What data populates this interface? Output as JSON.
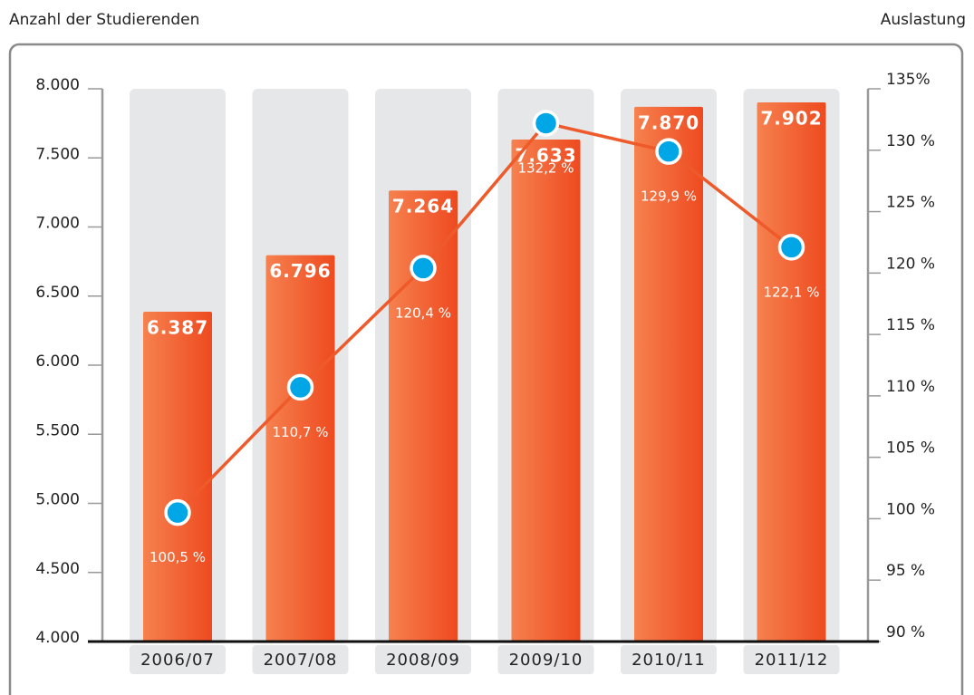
{
  "chart_data": {
    "type": "bar",
    "y_label": "Anzahl der Studierenden",
    "y2_label": "Auslastung",
    "categories": [
      "2006/07",
      "2007/08",
      "2008/09",
      "2009/10",
      "2010/11",
      "2011/12"
    ],
    "series": [
      {
        "type": "bar",
        "color": "#ee5024",
        "axis": "y",
        "values": [
          6387,
          6796,
          7264,
          7633,
          7870,
          7902
        ],
        "value_labels": [
          "6.387",
          "6.796",
          "7.264",
          "7.633",
          "7.870",
          "7.902"
        ]
      },
      {
        "type": "line",
        "color": "#ee5a2a",
        "marker_color": "#00a6e6",
        "axis": "y2",
        "values": [
          100.5,
          110.7,
          120.4,
          132.2,
          129.9,
          122.1
        ],
        "value_labels": [
          "100,5 %",
          "110,7 %",
          "120,4 %",
          "132,2 %",
          "129,9 %",
          "122,1 %"
        ]
      }
    ],
    "ylim": [
      4000,
      8000
    ],
    "yticks": [
      {
        "value": 4000,
        "label": "4.000"
      },
      {
        "value": 4500,
        "label": "4.500"
      },
      {
        "value": 5000,
        "label": "5.000"
      },
      {
        "value": 5500,
        "label": "5.500"
      },
      {
        "value": 6000,
        "label": "6.000"
      },
      {
        "value": 6500,
        "label": "6.500"
      },
      {
        "value": 7000,
        "label": "7.000"
      },
      {
        "value": 7500,
        "label": "7.500"
      },
      {
        "value": 8000,
        "label": "8.000"
      }
    ],
    "y2lim": [
      90,
      135
    ],
    "y2ticks": [
      {
        "value": 90,
        "label": "90 %"
      },
      {
        "value": 95,
        "label": "95 %"
      },
      {
        "value": 100,
        "label": "100 %"
      },
      {
        "value": 105,
        "label": "105 %"
      },
      {
        "value": 110,
        "label": "110 %"
      },
      {
        "value": 115,
        "label": "115 %"
      },
      {
        "value": 120,
        "label": "120 %"
      },
      {
        "value": 125,
        "label": "125 %"
      },
      {
        "value": 130,
        "label": "130 %"
      },
      {
        "value": 135,
        "label": "135%"
      }
    ],
    "grid": false
  }
}
